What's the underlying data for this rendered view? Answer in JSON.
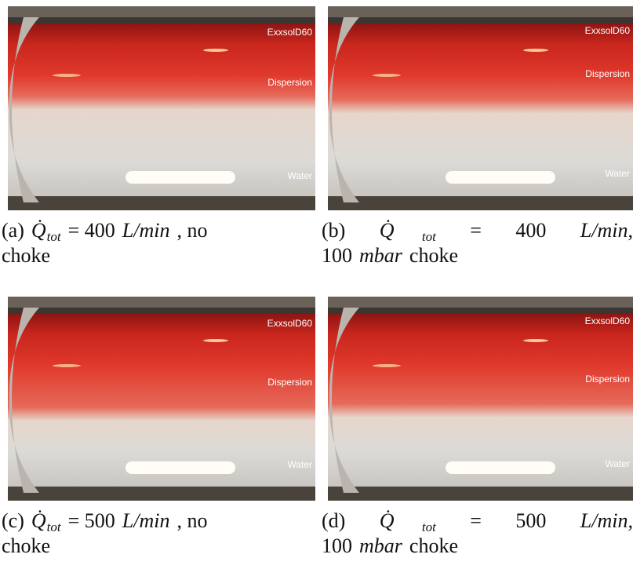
{
  "panels": [
    {
      "labels": [
        "ExxsolD60",
        "Dispersion",
        "Water"
      ],
      "caption": [
        [
          {
            "text": "(a)",
            "style": "normal"
          },
          {
            "text": "Q̇",
            "style": "italic"
          },
          {
            "text": "tot",
            "style": "sub"
          },
          {
            "text": "= 400",
            "style": "normal"
          },
          {
            "text": "L/min",
            "style": "italic"
          },
          {
            "text": ", no",
            "style": "normal"
          }
        ],
        [
          {
            "text": "choke",
            "style": "normal"
          }
        ]
      ]
    },
    {
      "labels": [
        "ExxsolD60",
        "Dispersion",
        "Water"
      ],
      "caption": [
        [
          {
            "text": "(b)",
            "style": "normal"
          },
          {
            "text": "Q̇",
            "style": "italic"
          },
          {
            "text": "tot",
            "style": "sub"
          },
          {
            "text": "=",
            "style": "normal"
          },
          {
            "text": "400",
            "style": "normal"
          },
          {
            "text": "L/min,",
            "style": "italic"
          }
        ],
        [
          {
            "text": "100",
            "style": "normal"
          },
          {
            "text": "mbar",
            "style": "italic"
          },
          {
            "text": "choke",
            "style": "normal"
          }
        ]
      ]
    },
    {
      "labels": [
        "ExxsolD60",
        "Dispersion",
        "Water"
      ],
      "caption": [
        [
          {
            "text": "(c)",
            "style": "normal"
          },
          {
            "text": "Q̇",
            "style": "italic"
          },
          {
            "text": "tot",
            "style": "sub"
          },
          {
            "text": "= 500",
            "style": "normal"
          },
          {
            "text": "L/min",
            "style": "italic"
          },
          {
            "text": ", no",
            "style": "normal"
          }
        ],
        [
          {
            "text": "choke",
            "style": "normal"
          }
        ]
      ]
    },
    {
      "labels": [
        "ExxsolD60",
        "Dispersion",
        "Water"
      ],
      "caption": [
        [
          {
            "text": "(d)",
            "style": "normal"
          },
          {
            "text": "Q̇",
            "style": "italic"
          },
          {
            "text": "tot",
            "style": "sub"
          },
          {
            "text": "=",
            "style": "normal"
          },
          {
            "text": "500",
            "style": "normal"
          },
          {
            "text": "L/min,",
            "style": "italic"
          }
        ],
        [
          {
            "text": "100",
            "style": "normal"
          },
          {
            "text": "mbar",
            "style": "italic"
          },
          {
            "text": "choke",
            "style": "normal"
          }
        ]
      ]
    }
  ]
}
